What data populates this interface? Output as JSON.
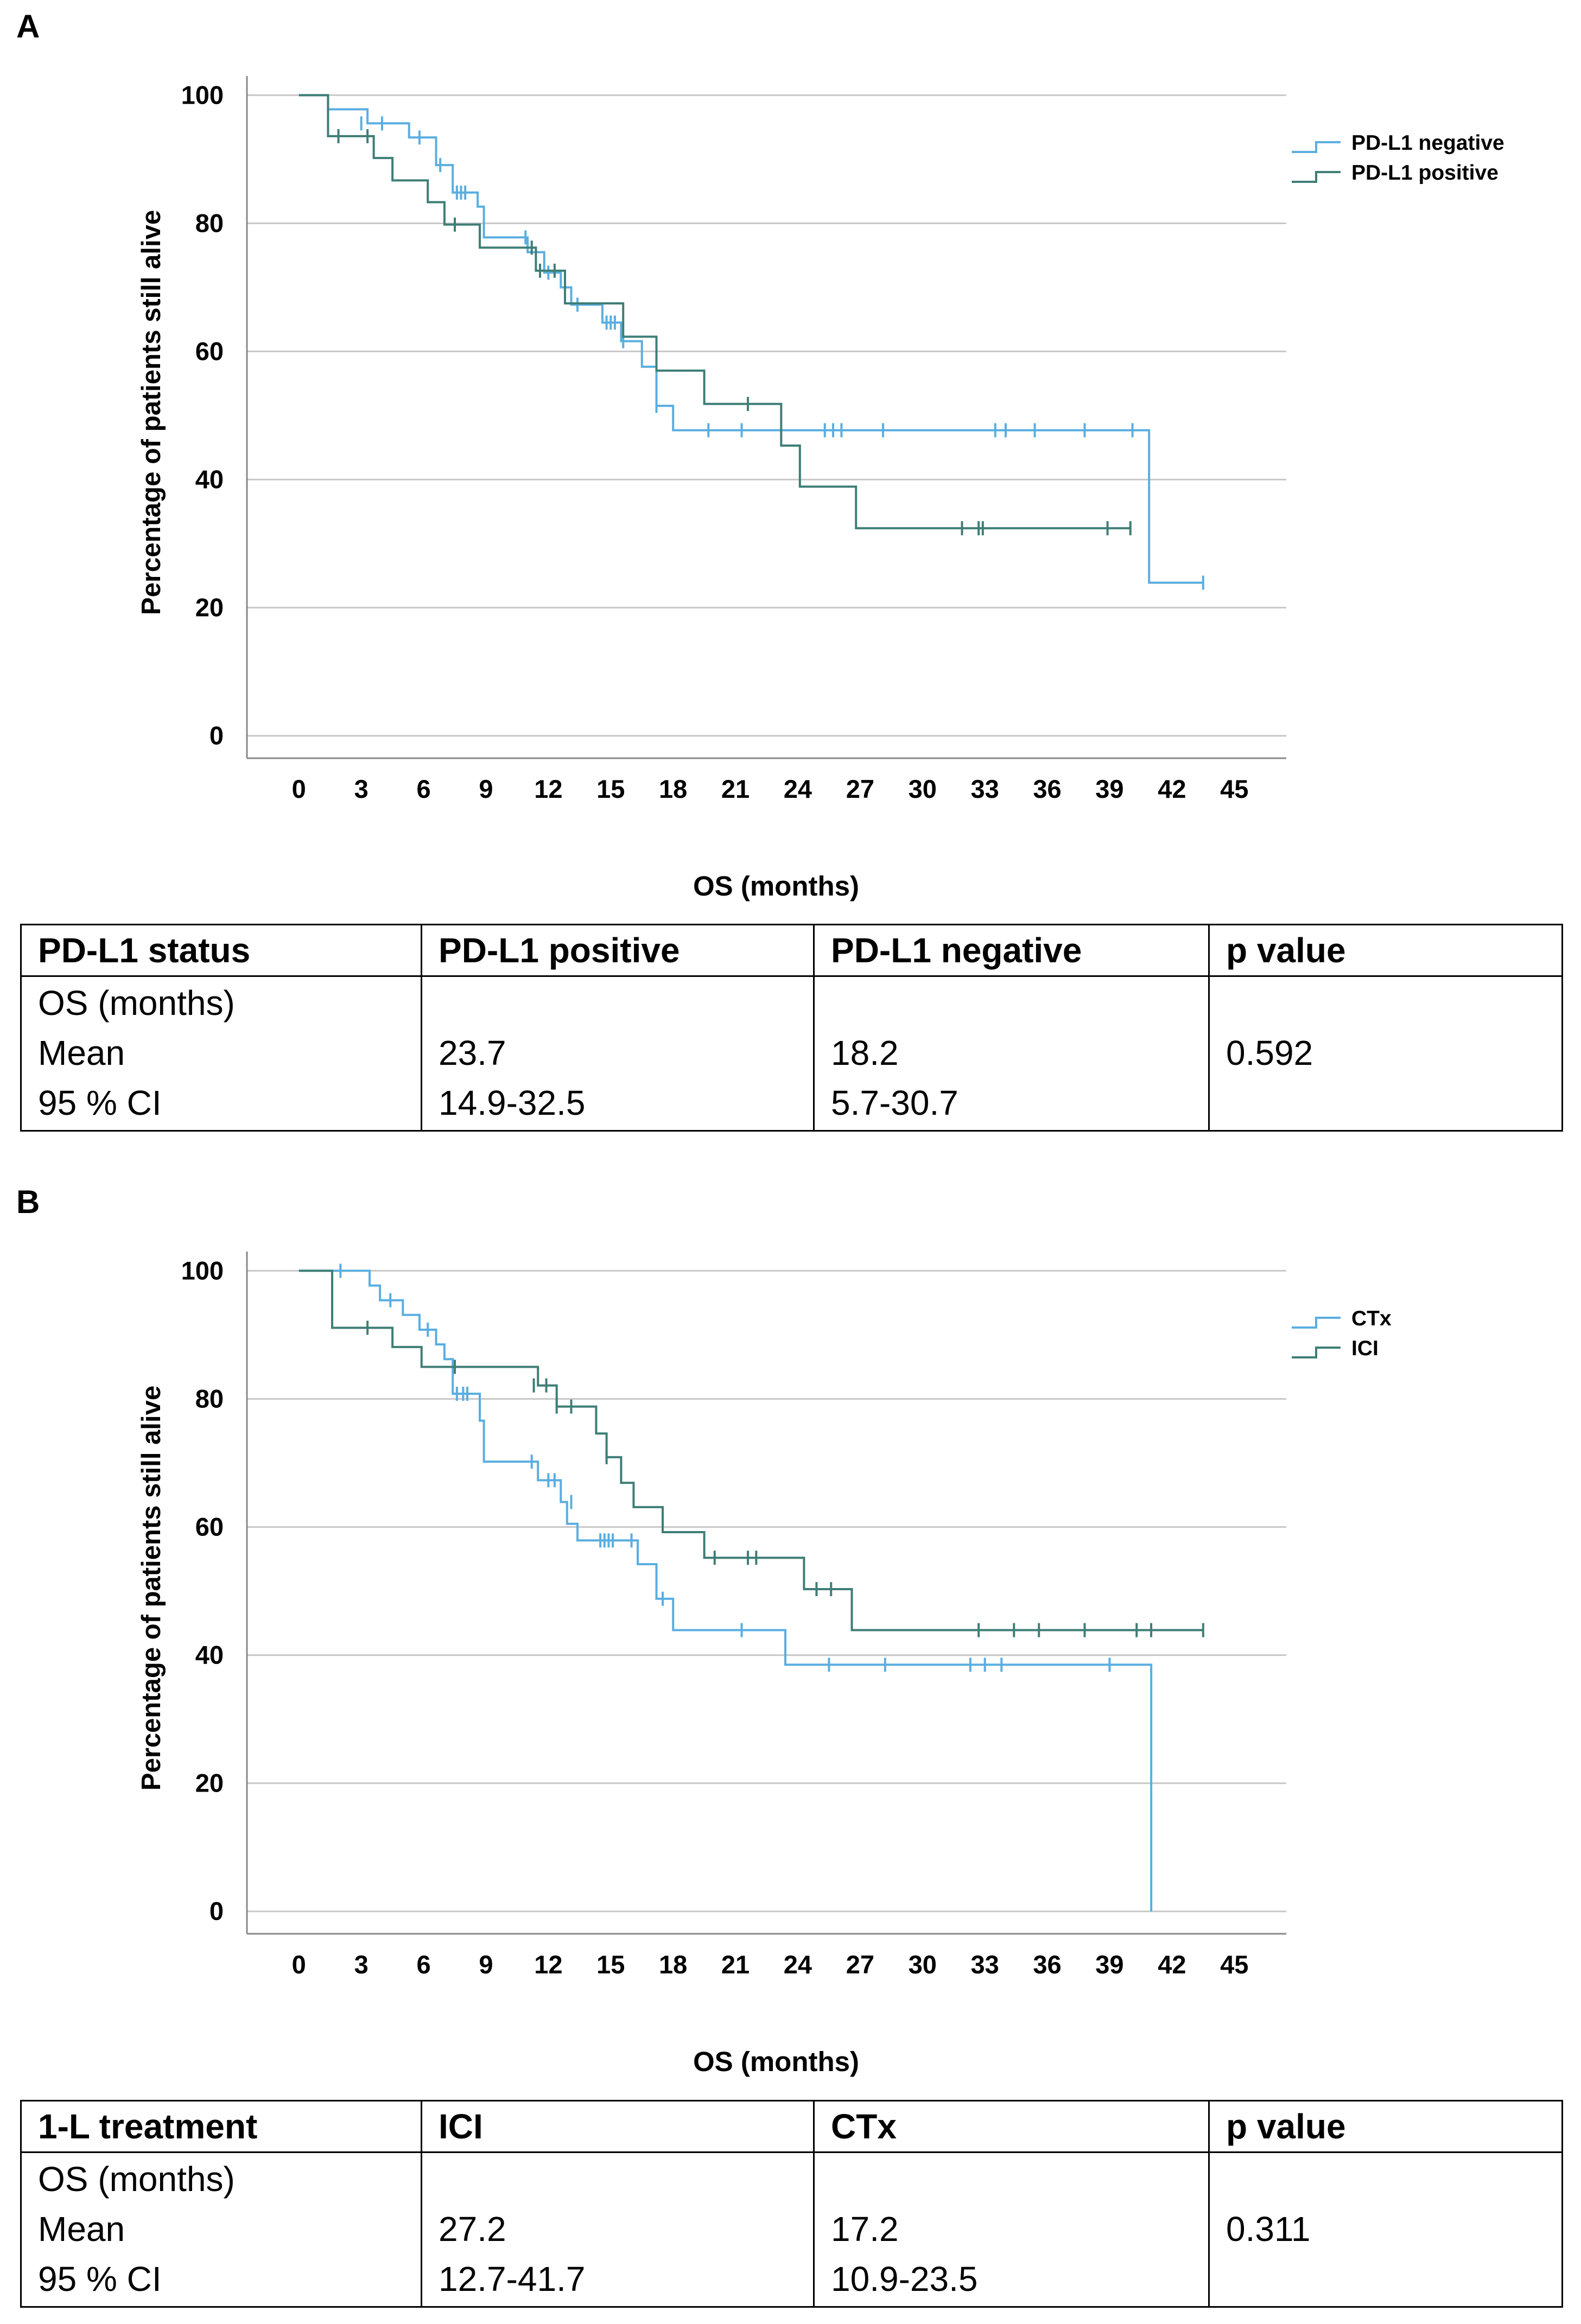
{
  "panels": [
    {
      "letter": "A",
      "chart_data": {
        "type": "line",
        "subtype": "kaplan-meier",
        "title": "",
        "xlabel": "OS (months)",
        "ylabel": "Percentage of patients still alive",
        "xlim": [
          -2.5,
          47.5
        ],
        "ylim": [
          -3.5,
          103
        ],
        "xticks": [
          0,
          3,
          6,
          9,
          12,
          15,
          18,
          21,
          24,
          27,
          30,
          33,
          36,
          39,
          42,
          45
        ],
        "yticks": [
          0,
          20,
          40,
          60,
          80,
          100
        ],
        "grid": true,
        "legend_position": "top-right",
        "series": [
          {
            "name": "PD-L1 negative",
            "color": "#5aaee0",
            "steps": [
              [
                0,
                100
              ],
              [
                1.4,
                100
              ],
              [
                1.4,
                97.8
              ],
              [
                3.3,
                97.8
              ],
              [
                3.3,
                95.6
              ],
              [
                5.3,
                95.6
              ],
              [
                5.3,
                93.4
              ],
              [
                6.6,
                93.4
              ],
              [
                6.6,
                89.1
              ],
              [
                7.4,
                89.1
              ],
              [
                7.4,
                84.8
              ],
              [
                8.6,
                84.8
              ],
              [
                8.6,
                82.6
              ],
              [
                8.9,
                82.6
              ],
              [
                8.9,
                77.8
              ],
              [
                11.0,
                77.8
              ],
              [
                11.0,
                75.5
              ],
              [
                11.8,
                75.5
              ],
              [
                11.8,
                72.3
              ],
              [
                12.6,
                72.3
              ],
              [
                12.6,
                70.0
              ],
              [
                13.1,
                70.0
              ],
              [
                13.1,
                67.3
              ],
              [
                14.6,
                67.3
              ],
              [
                14.6,
                64.5
              ],
              [
                15.5,
                64.5
              ],
              [
                15.5,
                61.6
              ],
              [
                16.5,
                61.6
              ],
              [
                16.5,
                57.6
              ],
              [
                17.2,
                57.6
              ],
              [
                17.2,
                51.5
              ],
              [
                18.0,
                51.5
              ],
              [
                18.0,
                47.7
              ],
              [
                40.9,
                47.7
              ],
              [
                40.9,
                23.9
              ],
              [
                43.5,
                23.9
              ]
            ],
            "censors": [
              [
                3.0,
                95.6
              ],
              [
                4.0,
                95.6
              ],
              [
                5.8,
                93.4
              ],
              [
                6.8,
                89.1
              ],
              [
                7.6,
                84.8
              ],
              [
                7.8,
                84.8
              ],
              [
                8.0,
                84.8
              ],
              [
                10.9,
                77.8
              ],
              [
                12.0,
                72.3
              ],
              [
                13.4,
                67.3
              ],
              [
                14.8,
                64.5
              ],
              [
                15.0,
                64.5
              ],
              [
                15.2,
                64.5
              ],
              [
                15.6,
                61.6
              ],
              [
                17.2,
                51.5
              ],
              [
                19.7,
                47.7
              ],
              [
                21.3,
                47.7
              ],
              [
                25.3,
                47.7
              ],
              [
                25.7,
                47.7
              ],
              [
                26.1,
                47.7
              ],
              [
                28.1,
                47.7
              ],
              [
                33.5,
                47.7
              ],
              [
                34.0,
                47.7
              ],
              [
                35.4,
                47.7
              ],
              [
                37.8,
                47.7
              ],
              [
                40.1,
                47.7
              ],
              [
                43.5,
                23.9
              ]
            ]
          },
          {
            "name": "PD-L1 positive",
            "color": "#3e7e76",
            "steps": [
              [
                0,
                100
              ],
              [
                1.4,
                100
              ],
              [
                1.4,
                93.6
              ],
              [
                3.6,
                93.6
              ],
              [
                3.6,
                90.2
              ],
              [
                4.5,
                90.2
              ],
              [
                4.5,
                86.7
              ],
              [
                6.2,
                86.7
              ],
              [
                6.2,
                83.3
              ],
              [
                7.0,
                83.3
              ],
              [
                7.0,
                79.8
              ],
              [
                8.7,
                79.8
              ],
              [
                8.7,
                76.2
              ],
              [
                11.4,
                76.2
              ],
              [
                11.4,
                72.6
              ],
              [
                12.8,
                72.6
              ],
              [
                12.8,
                67.5
              ],
              [
                15.6,
                67.5
              ],
              [
                15.6,
                62.3
              ],
              [
                17.2,
                62.3
              ],
              [
                17.2,
                57.0
              ],
              [
                19.5,
                57.0
              ],
              [
                19.5,
                51.8
              ],
              [
                23.2,
                51.8
              ],
              [
                23.2,
                45.3
              ],
              [
                24.1,
                45.3
              ],
              [
                24.1,
                38.9
              ],
              [
                26.8,
                38.9
              ],
              [
                26.8,
                32.4
              ],
              [
                40.0,
                32.4
              ]
            ],
            "censors": [
              [
                1.9,
                93.6
              ],
              [
                3.3,
                93.6
              ],
              [
                7.5,
                79.8
              ],
              [
                11.2,
                76.2
              ],
              [
                11.6,
                72.6
              ],
              [
                12.3,
                72.6
              ],
              [
                21.6,
                51.8
              ],
              [
                31.9,
                32.4
              ],
              [
                32.7,
                32.4
              ],
              [
                32.9,
                32.4
              ],
              [
                38.9,
                32.4
              ],
              [
                40.0,
                32.4
              ]
            ]
          }
        ]
      },
      "table": {
        "headers": [
          "PD-L1 status",
          "PD-L1 positive",
          "PD-L1 negative",
          "p value"
        ],
        "rows": [
          [
            "OS (months)",
            "",
            "",
            ""
          ],
          [
            "Mean",
            "23.7",
            "18.2",
            "0.592"
          ],
          [
            "95 % CI",
            "14.9-32.5",
            "5.7-30.7",
            ""
          ]
        ]
      }
    },
    {
      "letter": "B",
      "chart_data": {
        "type": "line",
        "subtype": "kaplan-meier",
        "title": "",
        "xlabel": "OS (months)",
        "ylabel": "Percentage of patients still alive",
        "xlim": [
          -2.5,
          47.5
        ],
        "ylim": [
          -3.5,
          103
        ],
        "xticks": [
          0,
          3,
          6,
          9,
          12,
          15,
          18,
          21,
          24,
          27,
          30,
          33,
          36,
          39,
          42,
          45
        ],
        "yticks": [
          0,
          20,
          40,
          60,
          80,
          100
        ],
        "grid": true,
        "legend_position": "top-right",
        "series": [
          {
            "name": "CTx",
            "color": "#5aaee0",
            "steps": [
              [
                0,
                100
              ],
              [
                3.4,
                100
              ],
              [
                3.4,
                97.7
              ],
              [
                3.9,
                97.7
              ],
              [
                3.9,
                95.4
              ],
              [
                5.0,
                95.4
              ],
              [
                5.0,
                93.1
              ],
              [
                5.8,
                93.1
              ],
              [
                5.8,
                90.8
              ],
              [
                6.6,
                90.8
              ],
              [
                6.6,
                88.5
              ],
              [
                7.0,
                88.5
              ],
              [
                7.0,
                86.2
              ],
              [
                7.4,
                86.2
              ],
              [
                7.4,
                80.8
              ],
              [
                8.7,
                80.8
              ],
              [
                8.7,
                76.6
              ],
              [
                8.9,
                76.6
              ],
              [
                8.9,
                70.2
              ],
              [
                11.5,
                70.2
              ],
              [
                11.5,
                67.3
              ],
              [
                12.6,
                67.3
              ],
              [
                12.6,
                63.9
              ],
              [
                12.9,
                63.9
              ],
              [
                12.9,
                60.5
              ],
              [
                13.4,
                60.5
              ],
              [
                13.4,
                57.9
              ],
              [
                16.3,
                57.9
              ],
              [
                16.3,
                54.2
              ],
              [
                17.2,
                54.2
              ],
              [
                17.2,
                48.8
              ],
              [
                18.0,
                48.8
              ],
              [
                18.0,
                43.9
              ],
              [
                23.4,
                43.9
              ],
              [
                23.4,
                38.5
              ],
              [
                41.0,
                38.5
              ],
              [
                41.0,
                0
              ]
            ],
            "censors": [
              [
                2.0,
                100
              ],
              [
                4.4,
                95.4
              ],
              [
                6.2,
                90.8
              ],
              [
                7.6,
                80.8
              ],
              [
                7.9,
                80.8
              ],
              [
                8.1,
                80.8
              ],
              [
                11.2,
                70.2
              ],
              [
                12.0,
                67.3
              ],
              [
                12.3,
                67.3
              ],
              [
                13.1,
                63.9
              ],
              [
                14.5,
                57.9
              ],
              [
                14.7,
                57.9
              ],
              [
                14.9,
                57.9
              ],
              [
                15.1,
                57.9
              ],
              [
                16.0,
                57.9
              ],
              [
                17.5,
                48.8
              ],
              [
                21.3,
                43.9
              ],
              [
                25.5,
                38.5
              ],
              [
                28.2,
                38.5
              ],
              [
                32.3,
                38.5
              ],
              [
                33.0,
                38.5
              ],
              [
                33.8,
                38.5
              ],
              [
                39.0,
                38.5
              ]
            ]
          },
          {
            "name": "ICI",
            "color": "#3e7e76",
            "steps": [
              [
                0,
                100
              ],
              [
                1.6,
                100
              ],
              [
                1.6,
                91.1
              ],
              [
                4.5,
                91.1
              ],
              [
                4.5,
                88.1
              ],
              [
                5.9,
                88.1
              ],
              [
                5.9,
                85.0
              ],
              [
                11.5,
                85.0
              ],
              [
                11.5,
                82.1
              ],
              [
                12.4,
                82.1
              ],
              [
                12.4,
                78.8
              ],
              [
                14.3,
                78.8
              ],
              [
                14.3,
                74.6
              ],
              [
                14.8,
                74.6
              ],
              [
                14.8,
                70.9
              ],
              [
                15.5,
                70.9
              ],
              [
                15.5,
                66.9
              ],
              [
                16.1,
                66.9
              ],
              [
                16.1,
                63.1
              ],
              [
                17.5,
                63.1
              ],
              [
                17.5,
                59.2
              ],
              [
                19.5,
                59.2
              ],
              [
                19.5,
                55.2
              ],
              [
                24.3,
                55.2
              ],
              [
                24.3,
                50.3
              ],
              [
                26.6,
                50.3
              ],
              [
                26.6,
                43.9
              ],
              [
                43.5,
                43.9
              ]
            ],
            "censors": [
              [
                3.3,
                91.1
              ],
              [
                7.5,
                85.0
              ],
              [
                11.3,
                82.1
              ],
              [
                11.9,
                82.1
              ],
              [
                12.4,
                78.8
              ],
              [
                13.1,
                78.8
              ],
              [
                14.8,
                70.9
              ],
              [
                20.0,
                55.2
              ],
              [
                21.6,
                55.2
              ],
              [
                22.0,
                55.2
              ],
              [
                24.9,
                50.3
              ],
              [
                25.6,
                50.3
              ],
              [
                32.7,
                43.9
              ],
              [
                34.4,
                43.9
              ],
              [
                35.6,
                43.9
              ],
              [
                37.8,
                43.9
              ],
              [
                40.3,
                43.9
              ],
              [
                41.0,
                43.9
              ],
              [
                43.5,
                43.9
              ]
            ]
          }
        ]
      },
      "table": {
        "headers": [
          "1-L treatment",
          "ICI",
          "CTx",
          "p value"
        ],
        "rows": [
          [
            "OS (months)",
            "",
            "",
            ""
          ],
          [
            "Mean",
            "27.2",
            "17.2",
            "0.311"
          ],
          [
            "95 % CI",
            "12.7-41.7",
            "10.9-23.5",
            ""
          ]
        ]
      }
    }
  ]
}
